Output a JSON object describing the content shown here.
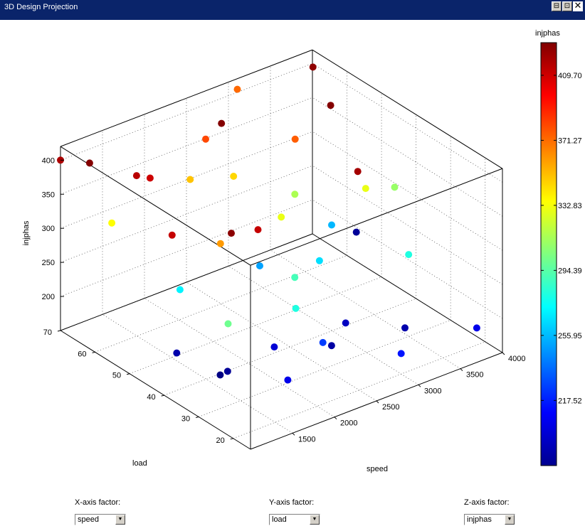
{
  "window": {
    "title": "3D Design Projection",
    "controls": [
      "⊟",
      "⊡",
      "✕"
    ]
  },
  "chart_data": {
    "type": "scatter3d",
    "xlabel": "speed",
    "ylabel": "load",
    "zlabel": "injphas",
    "xlim": [
      1000,
      4000
    ],
    "ylim": [
      15,
      70
    ],
    "zlim": [
      150,
      420
    ],
    "xticks": [
      "1500",
      "2000",
      "2500",
      "3000",
      "3500",
      "4000"
    ],
    "yticks": [
      "20",
      "30",
      "40",
      "50",
      "60",
      "70"
    ],
    "zticks": [
      "200",
      "250",
      "300",
      "350",
      "400"
    ],
    "colorbar": {
      "title": "injphas",
      "ticks": [
        "409.70",
        "371.27",
        "332.83",
        "294.39",
        "255.95",
        "217.52"
      ],
      "range": [
        179,
        429
      ],
      "colormap": "jet"
    },
    "grid": true,
    "points": [
      {
        "x": 1000,
        "y": 70,
        "z": 400,
        "c": 418
      },
      {
        "x": 1100,
        "y": 64,
        "z": 410,
        "c": 428
      },
      {
        "x": 1050,
        "y": 25,
        "z": 225,
        "c": 180
      },
      {
        "x": 1150,
        "y": 40,
        "z": 205,
        "c": 190
      },
      {
        "x": 1200,
        "y": 60,
        "z": 330,
        "c": 335
      },
      {
        "x": 1300,
        "y": 45,
        "z": 355,
        "c": 412
      },
      {
        "x": 1350,
        "y": 30,
        "z": 270,
        "c": 300
      },
      {
        "x": 1450,
        "y": 55,
        "z": 400,
        "c": 410
      },
      {
        "x": 1550,
        "y": 35,
        "z": 175,
        "c": 185
      },
      {
        "x": 1650,
        "y": 20,
        "z": 205,
        "c": 205
      },
      {
        "x": 1600,
        "y": 50,
        "z": 245,
        "c": 270
      },
      {
        "x": 1700,
        "y": 65,
        "z": 360,
        "c": 415
      },
      {
        "x": 1800,
        "y": 40,
        "z": 350,
        "c": 426
      },
      {
        "x": 1900,
        "y": 30,
        "z": 210,
        "c": 200
      },
      {
        "x": 1950,
        "y": 25,
        "z": 280,
        "c": 280
      },
      {
        "x": 2000,
        "y": 48,
        "z": 300,
        "c": 360
      },
      {
        "x": 2050,
        "y": 58,
        "z": 360,
        "c": 350
      },
      {
        "x": 2150,
        "y": 22,
        "z": 230,
        "c": 225
      },
      {
        "x": 2200,
        "y": 42,
        "z": 330,
        "c": 412
      },
      {
        "x": 2300,
        "y": 55,
        "z": 440,
        "c": 428
      },
      {
        "x": 2350,
        "y": 35,
        "z": 275,
        "c": 290
      },
      {
        "x": 2400,
        "y": 62,
        "z": 390,
        "c": 380
      },
      {
        "x": 2500,
        "y": 28,
        "z": 190,
        "c": 188
      },
      {
        "x": 2550,
        "y": 50,
        "z": 235,
        "c": 250
      },
      {
        "x": 2600,
        "y": 45,
        "z": 320,
        "c": 330
      },
      {
        "x": 2650,
        "y": 60,
        "z": 330,
        "c": 345
      },
      {
        "x": 2750,
        "y": 30,
        "z": 205,
        "c": 195
      },
      {
        "x": 2850,
        "y": 40,
        "z": 260,
        "c": 265
      },
      {
        "x": 2900,
        "y": 65,
        "z": 430,
        "c": 372
      },
      {
        "x": 3000,
        "y": 20,
        "z": 180,
        "c": 215
      },
      {
        "x": 3050,
        "y": 52,
        "z": 310,
        "c": 315
      },
      {
        "x": 3100,
        "y": 35,
        "z": 395,
        "c": 420
      },
      {
        "x": 3200,
        "y": 45,
        "z": 280,
        "c": 255
      },
      {
        "x": 3250,
        "y": 25,
        "z": 190,
        "c": 190
      },
      {
        "x": 3300,
        "y": 58,
        "z": 360,
        "c": 375
      },
      {
        "x": 3400,
        "y": 40,
        "z": 340,
        "c": 330
      },
      {
        "x": 3500,
        "y": 30,
        "z": 270,
        "c": 280
      },
      {
        "x": 3600,
        "y": 55,
        "z": 405,
        "c": 428
      },
      {
        "x": 3700,
        "y": 50,
        "z": 230,
        "c": 185
      },
      {
        "x": 3800,
        "y": 65,
        "z": 420,
        "c": 425
      },
      {
        "x": 3900,
        "y": 20,
        "z": 175,
        "c": 205
      },
      {
        "x": 3950,
        "y": 45,
        "z": 300,
        "c": 310
      }
    ]
  },
  "selectors": {
    "x": {
      "label": "X-axis factor:",
      "value": "speed"
    },
    "y": {
      "label": "Y-axis factor:",
      "value": "load"
    },
    "z": {
      "label": "Z-axis factor:",
      "value": "injphas"
    }
  }
}
